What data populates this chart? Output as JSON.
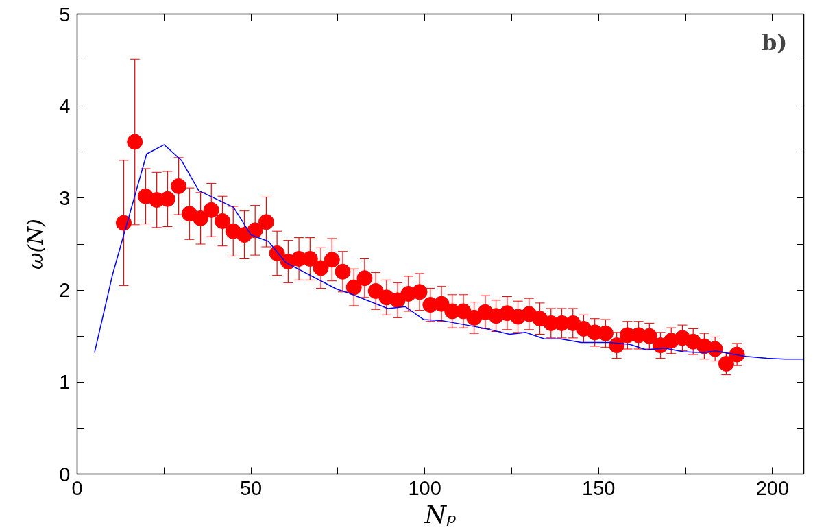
{
  "chart_data": {
    "type": "scatter",
    "xlabel": "Nₚ",
    "ylabel": "ω(N)",
    "annotations": [
      "b)"
    ],
    "xlim": [
      0,
      209
    ],
    "ylim": [
      0,
      5
    ],
    "xticks": [
      0,
      {
        "value": 25,
        "label": null
      },
      50,
      {
        "value": 75,
        "label": null
      },
      100,
      {
        "value": 125,
        "label": null
      },
      150,
      {
        "value": 175,
        "label": null
      },
      200
    ],
    "yticks": [
      0,
      {
        "value": 0.5,
        "label": null
      },
      1,
      {
        "value": 1.5,
        "label": null
      },
      2,
      {
        "value": 2.5,
        "label": null
      },
      3,
      {
        "value": 3.5,
        "label": null
      },
      4,
      {
        "value": 4.5,
        "label": null
      },
      5
    ],
    "grid": false,
    "series": [
      {
        "marker": "circle",
        "color": "#ff0000",
        "x": [
          13.4,
          16.6,
          19.7,
          22.9,
          26.0,
          29.2,
          32.3,
          35.5,
          38.6,
          41.8,
          44.9,
          48.1,
          51.2,
          54.4,
          57.5,
          60.7,
          63.8,
          67.0,
          70.1,
          73.3,
          76.4,
          79.6,
          82.7,
          85.9,
          89.0,
          92.2,
          95.3,
          98.5,
          101.6,
          104.8,
          107.9,
          111.1,
          114.2,
          117.4,
          120.5,
          123.7,
          126.8,
          130.0,
          133.1,
          136.3,
          139.4,
          142.6,
          145.7,
          148.9,
          152.0,
          155.2,
          158.3,
          161.5,
          164.6,
          167.8,
          170.9,
          174.1,
          177.2,
          180.4,
          183.5,
          186.7,
          189.8
        ],
        "values": [
          2.73,
          3.61,
          3.02,
          2.98,
          2.99,
          3.13,
          2.83,
          2.78,
          2.87,
          2.75,
          2.64,
          2.6,
          2.65,
          2.74,
          2.4,
          2.31,
          2.34,
          2.34,
          2.24,
          2.33,
          2.2,
          2.03,
          2.13,
          1.99,
          1.92,
          1.89,
          1.96,
          1.98,
          1.84,
          1.85,
          1.77,
          1.77,
          1.7,
          1.76,
          1.72,
          1.75,
          1.71,
          1.74,
          1.69,
          1.64,
          1.64,
          1.64,
          1.58,
          1.54,
          1.53,
          1.4,
          1.51,
          1.51,
          1.5,
          1.4,
          1.45,
          1.48,
          1.44,
          1.39,
          1.36,
          1.2,
          1.3
        ],
        "errors": [
          0.68,
          0.9,
          0.3,
          0.3,
          0.3,
          0.31,
          0.28,
          0.28,
          0.29,
          0.27,
          0.27,
          0.26,
          0.27,
          0.27,
          0.24,
          0.23,
          0.23,
          0.23,
          0.22,
          0.23,
          0.22,
          0.2,
          0.21,
          0.2,
          0.19,
          0.19,
          0.19,
          0.2,
          0.18,
          0.19,
          0.18,
          0.18,
          0.17,
          0.18,
          0.17,
          0.18,
          0.17,
          0.17,
          0.17,
          0.16,
          0.16,
          0.16,
          0.15,
          0.15,
          0.15,
          0.14,
          0.15,
          0.15,
          0.14,
          0.14,
          0.14,
          0.14,
          0.14,
          0.14,
          0.13,
          0.12,
          0.12
        ]
      },
      {
        "type": "line",
        "marker": "none",
        "line_style": "solid",
        "color": "#0000ff",
        "x": [
          5,
          10.2,
          20,
          25,
          30,
          35,
          45,
          50,
          55,
          60,
          74.7,
          78,
          89.4,
          94.4,
          99.7,
          104.7,
          116.4,
          124.4,
          129,
          134.4,
          139,
          145,
          153,
          159,
          163.7,
          169,
          174.4,
          180.4,
          183.7,
          187.7,
          192.4,
          198.4,
          203.7,
          208.8
        ],
        "values": [
          1.32,
          2.17,
          3.48,
          3.58,
          3.41,
          3.08,
          2.9,
          2.6,
          2.53,
          2.3,
          2.01,
          1.97,
          1.8,
          1.82,
          1.68,
          1.67,
          1.59,
          1.52,
          1.54,
          1.47,
          1.47,
          1.43,
          1.43,
          1.41,
          1.35,
          1.37,
          1.33,
          1.32,
          1.34,
          1.31,
          1.28,
          1.26,
          1.25,
          1.25
        ]
      }
    ]
  }
}
